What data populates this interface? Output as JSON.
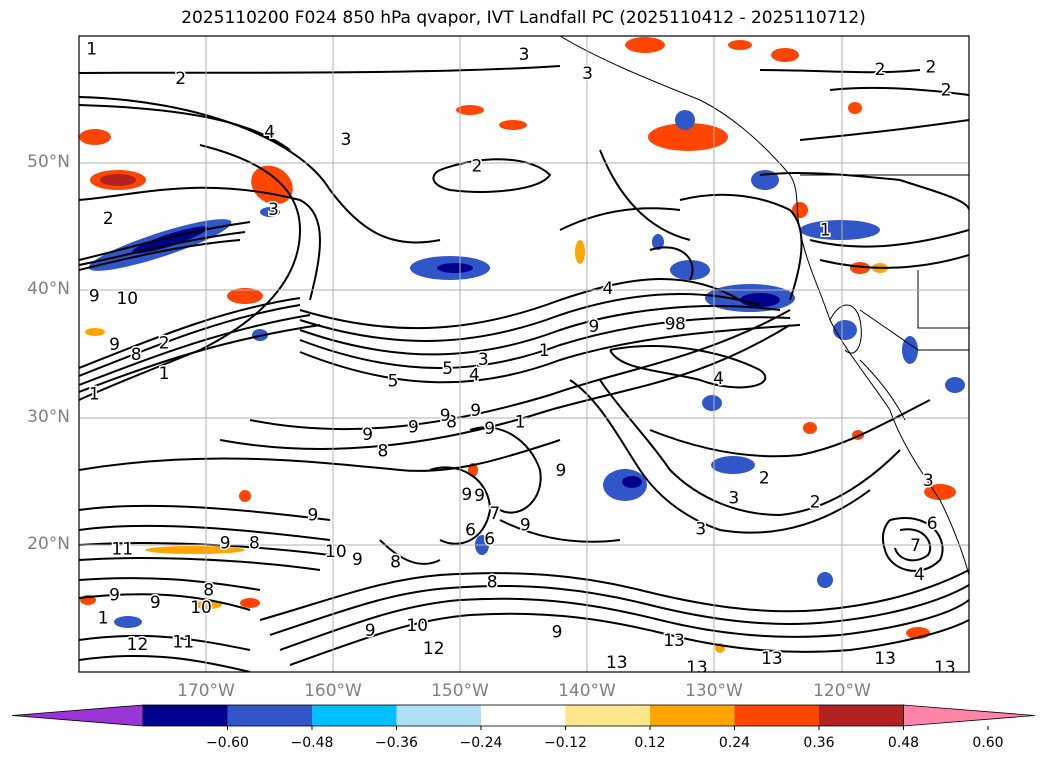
{
  "title": "2025110200 F024 850 hPa qvapor, IVT Landfall PC (2025110412 - 2025110712)",
  "map": {
    "projection": "PlateCarree",
    "lon_range": [
      -180,
      -110
    ],
    "lat_range": [
      10,
      60
    ],
    "grid": true,
    "lat_labels": [
      {
        "lat": 50,
        "text": "50°N"
      },
      {
        "lat": 40,
        "text": "40°N"
      },
      {
        "lat": 30,
        "text": "30°N"
      },
      {
        "lat": 20,
        "text": "20°N"
      }
    ],
    "lon_labels": [
      {
        "lon": -170,
        "text": "170°W"
      },
      {
        "lon": -160,
        "text": "160°W"
      },
      {
        "lon": -150,
        "text": "150°W"
      },
      {
        "lon": -140,
        "text": "140°W"
      },
      {
        "lon": -130,
        "text": "130°W"
      },
      {
        "lon": -120,
        "text": "120°W"
      }
    ],
    "contour_labels": [
      {
        "lon": -179,
        "lat": 59,
        "text": "1"
      },
      {
        "lon": -172,
        "lat": 56.7,
        "text": "2"
      },
      {
        "lon": -159,
        "lat": 51.9,
        "text": "3"
      },
      {
        "lon": -165,
        "lat": 52.5,
        "text": "4"
      },
      {
        "lon": -145,
        "lat": 58.6,
        "text": "3"
      },
      {
        "lon": -140,
        "lat": 57.1,
        "text": "3"
      },
      {
        "lon": -117,
        "lat": 57.4,
        "text": "2"
      },
      {
        "lon": -113,
        "lat": 57.6,
        "text": "2"
      },
      {
        "lon": -111.8,
        "lat": 55.8,
        "text": "2"
      },
      {
        "lon": -148.7,
        "lat": 49.8,
        "text": "2"
      },
      {
        "lon": -177.7,
        "lat": 45.7,
        "text": "2"
      },
      {
        "lon": -164.7,
        "lat": 46.4,
        "text": "3"
      },
      {
        "lon": -138.4,
        "lat": 40.2,
        "text": "4"
      },
      {
        "lon": -121.3,
        "lat": 44.8,
        "text": "1"
      },
      {
        "lon": -178.8,
        "lat": 39.6,
        "text": "9"
      },
      {
        "lon": -176.2,
        "lat": 39.4,
        "text": "10"
      },
      {
        "lon": -177.2,
        "lat": 35.8,
        "text": "9"
      },
      {
        "lon": -175.5,
        "lat": 35,
        "text": "8"
      },
      {
        "lon": -173.3,
        "lat": 35.9,
        "text": "2"
      },
      {
        "lon": -173.3,
        "lat": 33.5,
        "text": "1"
      },
      {
        "lon": -178.8,
        "lat": 31.9,
        "text": "1"
      },
      {
        "lon": -155.3,
        "lat": 32.9,
        "text": "5"
      },
      {
        "lon": -151,
        "lat": 33.9,
        "text": "5"
      },
      {
        "lon": -148.2,
        "lat": 34.6,
        "text": "3"
      },
      {
        "lon": -148.9,
        "lat": 33.4,
        "text": "4"
      },
      {
        "lon": -143.4,
        "lat": 35.3,
        "text": "1"
      },
      {
        "lon": -139.5,
        "lat": 37.2,
        "text": "9"
      },
      {
        "lon": -133.5,
        "lat": 37.4,
        "text": "9"
      },
      {
        "lon": -132.7,
        "lat": 37.4,
        "text": "8"
      },
      {
        "lon": -129.7,
        "lat": 33.1,
        "text": "4"
      },
      {
        "lon": -126.1,
        "lat": 25.3,
        "text": "2"
      },
      {
        "lon": -128.5,
        "lat": 23.7,
        "text": "3"
      },
      {
        "lon": -122.1,
        "lat": 23.4,
        "text": "2"
      },
      {
        "lon": -131.1,
        "lat": 21.3,
        "text": "3"
      },
      {
        "lon": -153.7,
        "lat": 29.3,
        "text": "9"
      },
      {
        "lon": -150.7,
        "lat": 29.7,
        "text": "8"
      },
      {
        "lon": -148.8,
        "lat": 30.6,
        "text": "9"
      },
      {
        "lon": -147.7,
        "lat": 29.2,
        "text": "9"
      },
      {
        "lon": -151.2,
        "lat": 30.2,
        "text": "9"
      },
      {
        "lon": -145.3,
        "lat": 29.7,
        "text": "1"
      },
      {
        "lon": -157.3,
        "lat": 28.7,
        "text": "9"
      },
      {
        "lon": -156.1,
        "lat": 27.4,
        "text": "8"
      },
      {
        "lon": -142.1,
        "lat": 25.9,
        "text": "9"
      },
      {
        "lon": -149.5,
        "lat": 24,
        "text": "9"
      },
      {
        "lon": -148.5,
        "lat": 23.9,
        "text": "9"
      },
      {
        "lon": -147.3,
        "lat": 22.5,
        "text": "7"
      },
      {
        "lon": -144.9,
        "lat": 21.6,
        "text": "9"
      },
      {
        "lon": -149.2,
        "lat": 21.2,
        "text": "6"
      },
      {
        "lon": -147.7,
        "lat": 20.5,
        "text": "6"
      },
      {
        "lon": -147.5,
        "lat": 17.1,
        "text": "8"
      },
      {
        "lon": -161.6,
        "lat": 22.4,
        "text": "9"
      },
      {
        "lon": -166.2,
        "lat": 20.2,
        "text": "8"
      },
      {
        "lon": -168.5,
        "lat": 20.2,
        "text": "9"
      },
      {
        "lon": -176.6,
        "lat": 19.7,
        "text": "11"
      },
      {
        "lon": -159.8,
        "lat": 19.5,
        "text": "10"
      },
      {
        "lon": -158.1,
        "lat": 18.9,
        "text": "9"
      },
      {
        "lon": -155.1,
        "lat": 18.7,
        "text": "8"
      },
      {
        "lon": -177.2,
        "lat": 16.1,
        "text": "9"
      },
      {
        "lon": -174,
        "lat": 15.5,
        "text": "9"
      },
      {
        "lon": -169.8,
        "lat": 16.5,
        "text": "8"
      },
      {
        "lon": -170.4,
        "lat": 15.1,
        "text": "10"
      },
      {
        "lon": -178.1,
        "lat": 14.3,
        "text": "1"
      },
      {
        "lon": -175.4,
        "lat": 12.2,
        "text": "12"
      },
      {
        "lon": -171.8,
        "lat": 12.4,
        "text": "11"
      },
      {
        "lon": -157.1,
        "lat": 13.3,
        "text": "9"
      },
      {
        "lon": -153.4,
        "lat": 13.7,
        "text": "10"
      },
      {
        "lon": -152.1,
        "lat": 11.9,
        "text": "12"
      },
      {
        "lon": -142.4,
        "lat": 13.2,
        "text": "9"
      },
      {
        "lon": -133.2,
        "lat": 12.5,
        "text": "13"
      },
      {
        "lon": -125.5,
        "lat": 11.1,
        "text": "13"
      },
      {
        "lon": -137.7,
        "lat": 10.8,
        "text": "13"
      },
      {
        "lon": -131.4,
        "lat": 10.4,
        "text": "13"
      },
      {
        "lon": -116.6,
        "lat": 11.1,
        "text": "13"
      },
      {
        "lon": -111.9,
        "lat": 10.4,
        "text": "13"
      },
      {
        "lon": -114.2,
        "lat": 20,
        "text": "7"
      },
      {
        "lon": -112.9,
        "lat": 21.7,
        "text": "6"
      },
      {
        "lon": -113.9,
        "lat": 17.7,
        "text": "4"
      },
      {
        "lon": -113.2,
        "lat": 25.1,
        "text": "3"
      }
    ]
  },
  "colorbar": {
    "colors": [
      "#9a35d6",
      "#00008c",
      "#3056c8",
      "#00bfff",
      "#b0e0f8",
      "#ffffff",
      "#fce78c",
      "#ffa500",
      "#ff4500",
      "#b22222",
      "#ff85a8"
    ],
    "ticks": [
      "−0.60",
      "−0.48",
      "−0.36",
      "−0.24",
      "−0.12",
      "0.12",
      "0.24",
      "0.36",
      "0.48",
      "0.60"
    ],
    "extend": "both"
  }
}
